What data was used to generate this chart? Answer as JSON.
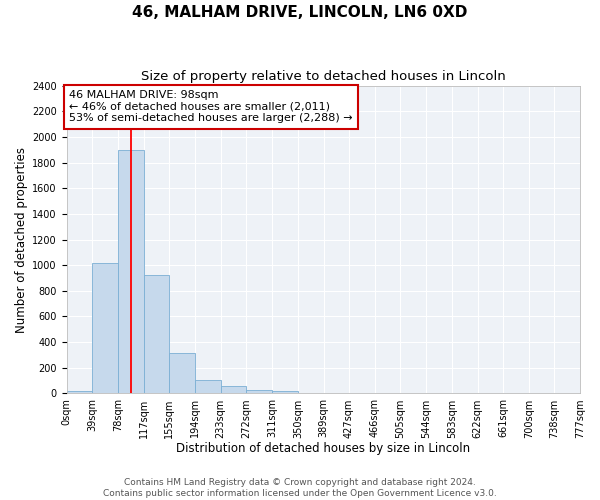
{
  "title": "46, MALHAM DRIVE, LINCOLN, LN6 0XD",
  "subtitle": "Size of property relative to detached houses in Lincoln",
  "xlabel": "Distribution of detached houses by size in Lincoln",
  "ylabel": "Number of detached properties",
  "bin_edges": [
    0,
    39,
    78,
    117,
    155,
    194,
    233,
    272,
    311,
    350,
    389,
    427,
    466,
    505,
    544,
    583,
    622,
    661,
    700,
    738,
    777
  ],
  "bin_labels": [
    "0sqm",
    "39sqm",
    "78sqm",
    "117sqm",
    "155sqm",
    "194sqm",
    "233sqm",
    "272sqm",
    "311sqm",
    "350sqm",
    "389sqm",
    "427sqm",
    "466sqm",
    "505sqm",
    "544sqm",
    "583sqm",
    "622sqm",
    "661sqm",
    "700sqm",
    "738sqm",
    "777sqm"
  ],
  "bar_heights": [
    20,
    1020,
    1900,
    920,
    315,
    105,
    55,
    30,
    20,
    0,
    0,
    0,
    0,
    0,
    0,
    0,
    0,
    0,
    0,
    0
  ],
  "bar_color": "#c6d9ec",
  "bar_edgecolor": "#7bafd4",
  "red_line_x": 98,
  "annotation_text": "46 MALHAM DRIVE: 98sqm\n← 46% of detached houses are smaller (2,011)\n53% of semi-detached houses are larger (2,288) →",
  "annotation_box_facecolor": "#ffffff",
  "annotation_box_edgecolor": "#cc0000",
  "ylim": [
    0,
    2400
  ],
  "yticks": [
    0,
    200,
    400,
    600,
    800,
    1000,
    1200,
    1400,
    1600,
    1800,
    2000,
    2200,
    2400
  ],
  "footer_line1": "Contains HM Land Registry data © Crown copyright and database right 2024.",
  "footer_line2": "Contains public sector information licensed under the Open Government Licence v3.0.",
  "title_fontsize": 11,
  "subtitle_fontsize": 9.5,
  "axis_label_fontsize": 8.5,
  "tick_label_fontsize": 7,
  "annotation_fontsize": 8,
  "footer_fontsize": 6.5,
  "bg_color": "#eef2f7",
  "grid_color": "#ffffff"
}
